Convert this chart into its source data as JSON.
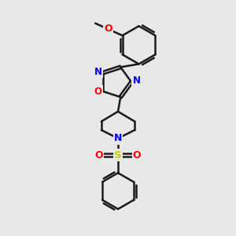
{
  "bg_color": "#e8e8e8",
  "bond_color": "#1a1a1a",
  "N_color": "#0000ff",
  "O_color": "#ff0000",
  "S_color": "#cccc00",
  "lw": 1.8,
  "figsize": [
    3.0,
    3.0
  ],
  "dpi": 100,
  "xlim": [
    0,
    10
  ],
  "ylim": [
    0,
    10
  ]
}
